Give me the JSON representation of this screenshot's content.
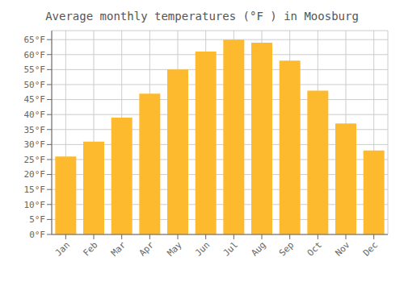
{
  "chart_data": {
    "type": "bar",
    "title": "Average monthly temperatures (°F ) in Moosburg",
    "categories": [
      "Jan",
      "Feb",
      "Mar",
      "Apr",
      "May",
      "Jun",
      "Jul",
      "Aug",
      "Sep",
      "Oct",
      "Nov",
      "Dec"
    ],
    "values": [
      26,
      31,
      39,
      47,
      55,
      61,
      65,
      64,
      58,
      48,
      37,
      28
    ],
    "color": "#FDBA2F",
    "ylim": [
      0,
      68
    ],
    "yticks": [
      {
        "value": 0,
        "label": "0°F"
      },
      {
        "value": 5,
        "label": "5°F"
      },
      {
        "value": 10,
        "label": "10°F"
      },
      {
        "value": 15,
        "label": "15°F"
      },
      {
        "value": 20,
        "label": "20°F"
      },
      {
        "value": 25,
        "label": "25°F"
      },
      {
        "value": 30,
        "label": "30°F"
      },
      {
        "value": 35,
        "label": "35°F"
      },
      {
        "value": 40,
        "label": "40°F"
      },
      {
        "value": 45,
        "label": "45°F"
      },
      {
        "value": 50,
        "label": "50°F"
      },
      {
        "value": 55,
        "label": "55°F"
      },
      {
        "value": 60,
        "label": "60°F"
      },
      {
        "value": 65,
        "label": "65°F"
      }
    ],
    "grid": true
  }
}
